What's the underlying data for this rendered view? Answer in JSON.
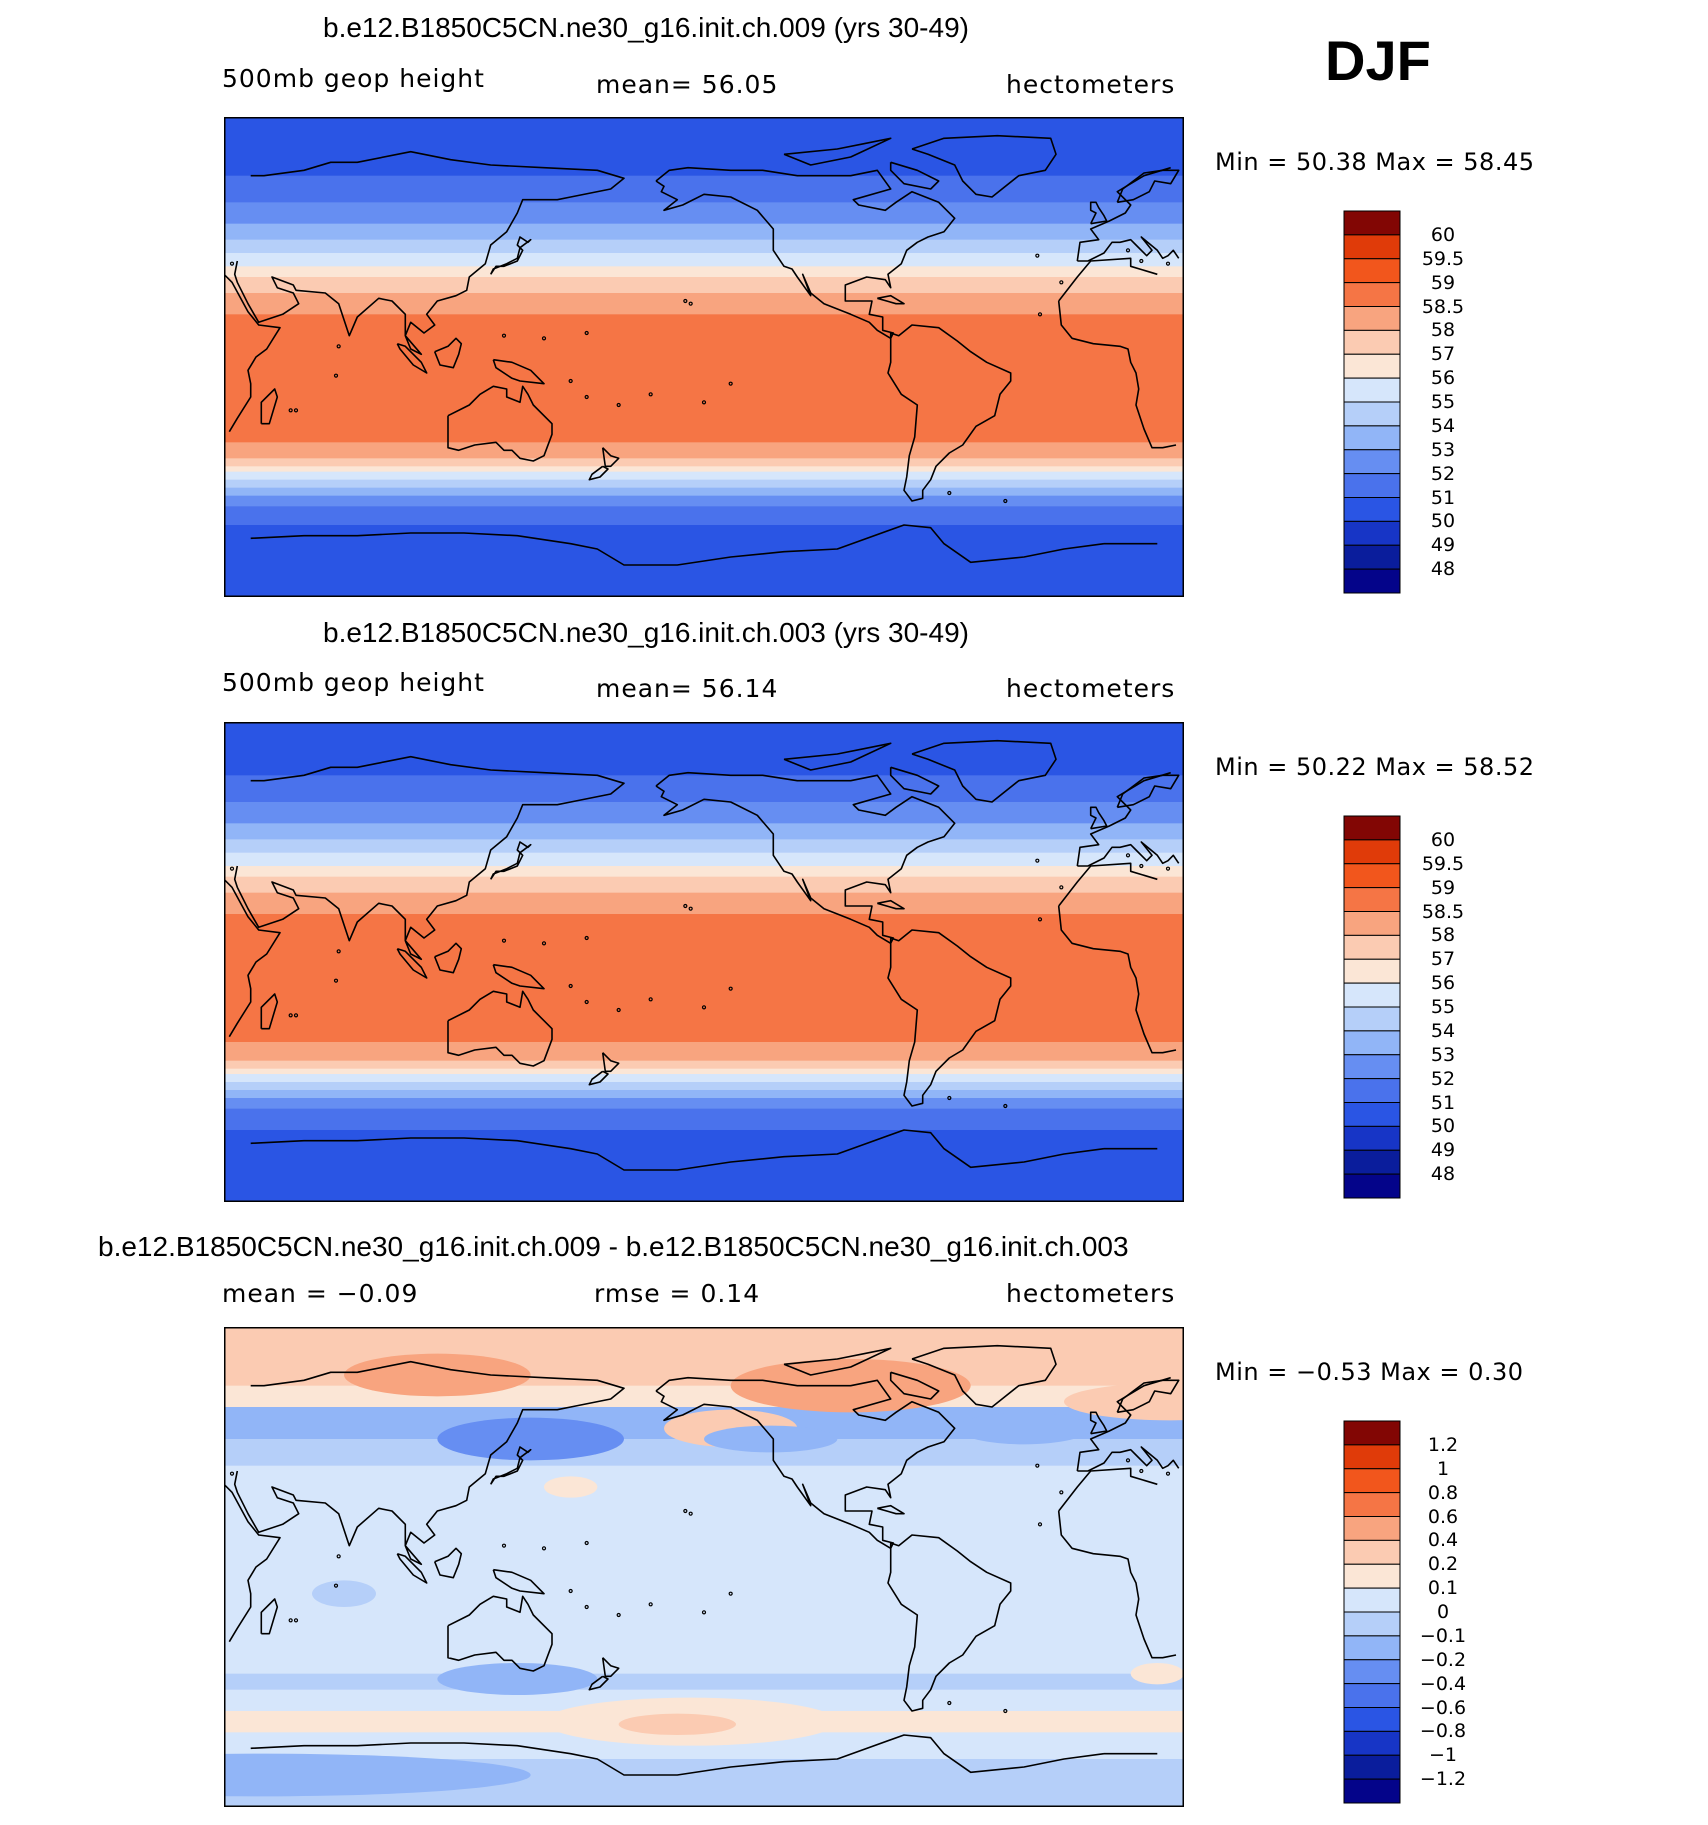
{
  "season": "DJF",
  "colors": {
    "warm": [
      "#fbe6d6",
      "#fbcbb2",
      "#f8a47f",
      "#f57545",
      "#f2561c",
      "#e03b09",
      "#b02806",
      "#820604"
    ],
    "cool": [
      "#d6e6fb",
      "#b5cff9",
      "#91b5f7",
      "#668ef2",
      "#4a72ec",
      "#2a55e4",
      "#1735c6",
      "#0a1d9c",
      "#04048a"
    ],
    "coastline": "#000000"
  },
  "chart_data": [
    {
      "type": "heatmap",
      "title": "b.e12.B1850C5CN.ne30_g16.init.ch.009 (yrs 30-49)",
      "left_label": "500mb  geop  height",
      "center_label": "mean=   56.05",
      "right_label": "hectometers",
      "stats": "Min  =    50.38  Max  =    58.45",
      "colorbar": {
        "levels": [
          "48",
          "49",
          "50",
          "51",
          "52",
          "53",
          "54",
          "55",
          "56",
          "57",
          "58",
          "58.5",
          "59",
          "59.5",
          "60"
        ],
        "colors": [
          "#04048a",
          "#0a1d9c",
          "#1735c6",
          "#2a55e4",
          "#4a72ec",
          "#668ef2",
          "#91b5f7",
          "#b5cff9",
          "#d6e6fb",
          "#fbe6d6",
          "#fbcbb2",
          "#f8a47f",
          "#f57545",
          "#f2561c",
          "#e03b09",
          "#820604"
        ]
      },
      "bands": [
        {
          "lat": 90,
          "c": "#2a55e4"
        },
        {
          "lat": 68,
          "c": "#4a72ec"
        },
        {
          "lat": 58,
          "c": "#668ef2"
        },
        {
          "lat": 50,
          "c": "#91b5f7"
        },
        {
          "lat": 44,
          "c": "#b5cff9"
        },
        {
          "lat": 39,
          "c": "#d6e6fb"
        },
        {
          "lat": 34,
          "c": "#fbe6d6"
        },
        {
          "lat": 30,
          "c": "#fbcbb2"
        },
        {
          "lat": 24,
          "c": "#f8a47f"
        },
        {
          "lat": 16,
          "c": "#f57545"
        },
        {
          "lat": -32,
          "c": "#f8a47f"
        },
        {
          "lat": -38,
          "c": "#fbcbb2"
        },
        {
          "lat": -41,
          "c": "#fbe6d6"
        },
        {
          "lat": -43,
          "c": "#d6e6fb"
        },
        {
          "lat": -46,
          "c": "#b5cff9"
        },
        {
          "lat": -49,
          "c": "#91b5f7"
        },
        {
          "lat": -52,
          "c": "#668ef2"
        },
        {
          "lat": -56,
          "c": "#4a72ec"
        },
        {
          "lat": -63,
          "c": "#2a55e4"
        }
      ]
    },
    {
      "type": "heatmap",
      "title": "b.e12.B1850C5CN.ne30_g16.init.ch.003 (yrs 30-49)",
      "left_label": "500mb  geop  height",
      "center_label": "mean=   56.14",
      "right_label": "hectometers",
      "stats": "Min  =    50.22  Max  =    58.52",
      "colorbar": {
        "levels": [
          "48",
          "49",
          "50",
          "51",
          "52",
          "53",
          "54",
          "55",
          "56",
          "57",
          "58",
          "58.5",
          "59",
          "59.5",
          "60"
        ],
        "colors": [
          "#04048a",
          "#0a1d9c",
          "#1735c6",
          "#2a55e4",
          "#4a72ec",
          "#668ef2",
          "#91b5f7",
          "#b5cff9",
          "#d6e6fb",
          "#fbe6d6",
          "#fbcbb2",
          "#f8a47f",
          "#f57545",
          "#f2561c",
          "#e03b09",
          "#820604"
        ]
      },
      "bands": [
        {
          "lat": 90,
          "c": "#2a55e4"
        },
        {
          "lat": 70,
          "c": "#4a72ec"
        },
        {
          "lat": 60,
          "c": "#668ef2"
        },
        {
          "lat": 52,
          "c": "#91b5f7"
        },
        {
          "lat": 46,
          "c": "#b5cff9"
        },
        {
          "lat": 41,
          "c": "#d6e6fb"
        },
        {
          "lat": 36,
          "c": "#fbe6d6"
        },
        {
          "lat": 32,
          "c": "#fbcbb2"
        },
        {
          "lat": 26,
          "c": "#f8a47f"
        },
        {
          "lat": 18,
          "c": "#f57545"
        },
        {
          "lat": -30,
          "c": "#f8a47f"
        },
        {
          "lat": -37,
          "c": "#fbcbb2"
        },
        {
          "lat": -40,
          "c": "#fbe6d6"
        },
        {
          "lat": -42,
          "c": "#d6e6fb"
        },
        {
          "lat": -45,
          "c": "#b5cff9"
        },
        {
          "lat": -48,
          "c": "#91b5f7"
        },
        {
          "lat": -51,
          "c": "#668ef2"
        },
        {
          "lat": -55,
          "c": "#4a72ec"
        },
        {
          "lat": -63,
          "c": "#2a55e4"
        }
      ]
    },
    {
      "type": "heatmap",
      "title": "b.e12.B1850C5CN.ne30_g16.init.ch.009 - b.e12.B1850C5CN.ne30_g16.init.ch.003",
      "left_label": "mean  =    −0.09",
      "center_label": "rmse  =     0.14",
      "right_label": "hectometers",
      "stats": "Min  =    −0.53  Max  =     0.30",
      "colorbar": {
        "levels": [
          "−1.2",
          "−1",
          "−0.8",
          "−0.6",
          "−0.4",
          "−0.2",
          "−0.1",
          "0",
          "0.1",
          "0.2",
          "0.4",
          "0.6",
          "0.8",
          "1",
          "1.2"
        ],
        "colors": [
          "#04048a",
          "#0a1d9c",
          "#1735c6",
          "#2a55e4",
          "#4a72ec",
          "#668ef2",
          "#91b5f7",
          "#b5cff9",
          "#d6e6fb",
          "#fbe6d6",
          "#fbcbb2",
          "#f8a47f",
          "#f57545",
          "#f2561c",
          "#e03b09",
          "#820604"
        ]
      },
      "bands": [
        {
          "lat": 90,
          "c": "#fbcbb2"
        },
        {
          "lat": 68,
          "c": "#fbe6d6"
        },
        {
          "lat": 60,
          "c": "#91b5f7"
        },
        {
          "lat": 48,
          "c": "#b5cff9"
        },
        {
          "lat": 38,
          "c": "#d6e6fb"
        },
        {
          "lat": -40,
          "c": "#b5cff9"
        },
        {
          "lat": -46,
          "c": "#d6e6fb"
        },
        {
          "lat": -54,
          "c": "#fbe6d6"
        },
        {
          "lat": -62,
          "c": "#d6e6fb"
        },
        {
          "lat": -72,
          "c": "#b5cff9"
        }
      ],
      "blobs": [
        {
          "lon": 110,
          "lat": 72,
          "rx": 35,
          "ry": 8,
          "c": "#f8a47f"
        },
        {
          "lon": -95,
          "lat": 68,
          "rx": 45,
          "ry": 10,
          "c": "#f8a47f"
        },
        {
          "lon": -140,
          "lat": 52,
          "rx": 25,
          "ry": 7,
          "c": "#fbcbb2"
        },
        {
          "lon": 25,
          "lat": 62,
          "rx": 40,
          "ry": 7,
          "c": "#fbcbb2"
        },
        {
          "lon": 145,
          "lat": 48,
          "rx": 35,
          "ry": 8,
          "c": "#668ef2"
        },
        {
          "lon": -125,
          "lat": 48,
          "rx": 25,
          "ry": 5,
          "c": "#91b5f7"
        },
        {
          "lon": -30,
          "lat": 52,
          "rx": 25,
          "ry": 6,
          "c": "#91b5f7"
        },
        {
          "lon": 160,
          "lat": 30,
          "rx": 10,
          "ry": 4,
          "c": "#fbe6d6"
        },
        {
          "lon": 75,
          "lat": -10,
          "rx": 12,
          "ry": 5,
          "c": "#b5cff9"
        },
        {
          "lon": 20,
          "lat": -40,
          "rx": 10,
          "ry": 4,
          "c": "#fbe6d6"
        },
        {
          "lon": 140,
          "lat": -42,
          "rx": 30,
          "ry": 6,
          "c": "#91b5f7"
        },
        {
          "lon": -155,
          "lat": -58,
          "rx": 55,
          "ry": 9,
          "c": "#fbe6d6"
        },
        {
          "lon": -160,
          "lat": -59,
          "rx": 22,
          "ry": 4,
          "c": "#fbcbb2"
        },
        {
          "lon": 45,
          "lat": -78,
          "rx": 100,
          "ry": 8,
          "c": "#91b5f7"
        }
      ]
    }
  ]
}
